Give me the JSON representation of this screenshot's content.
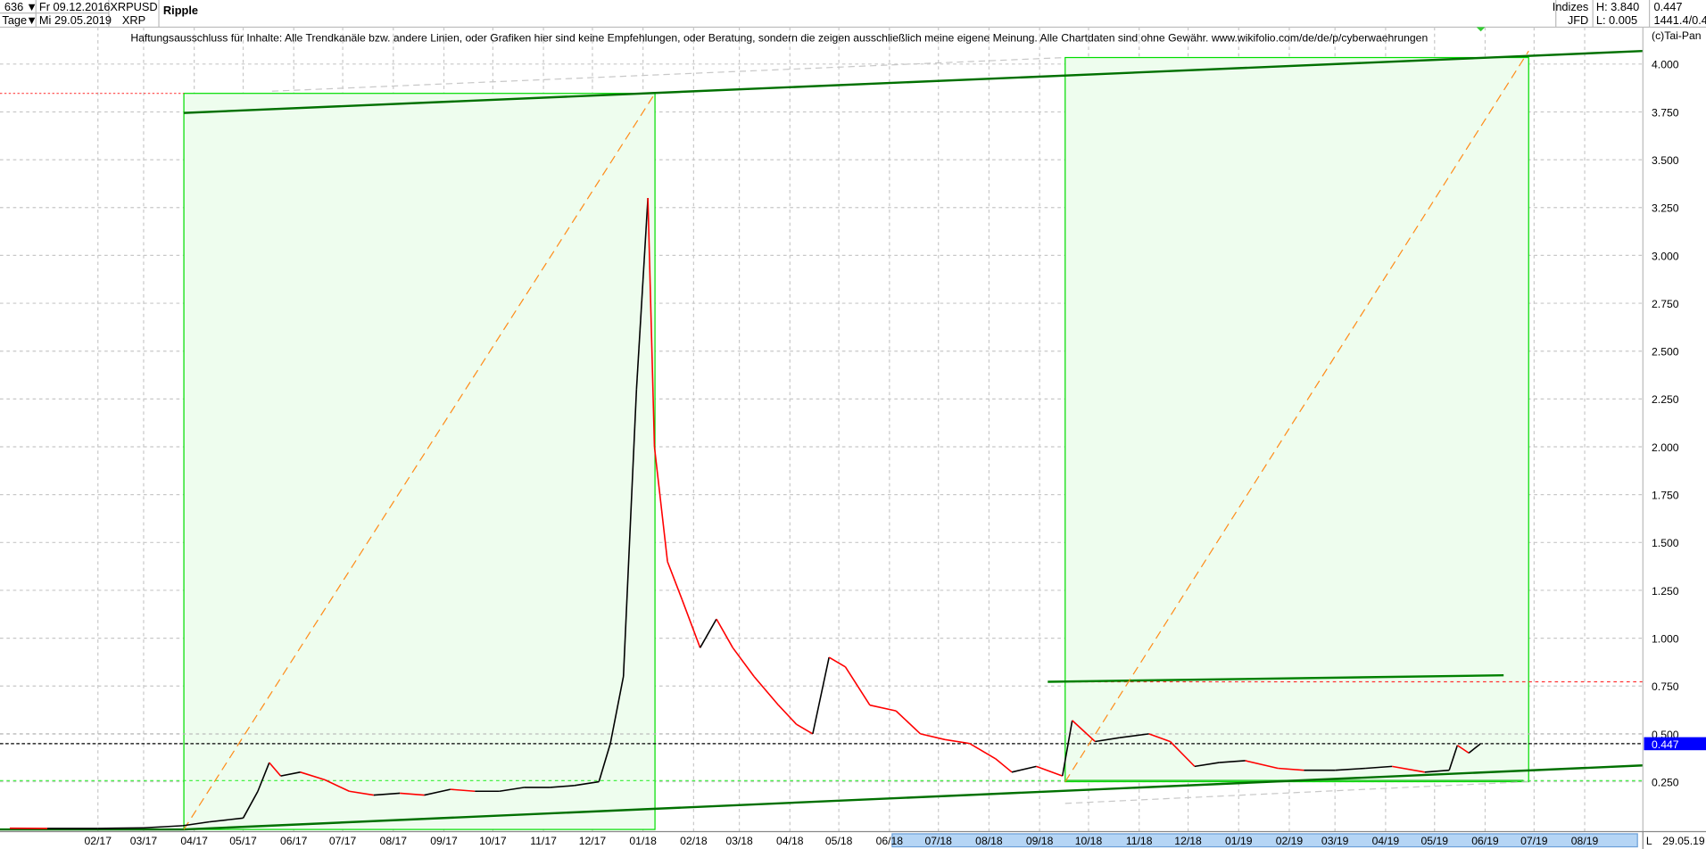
{
  "header": {
    "bars_count": "636",
    "period": "Tage",
    "date_from": "Fr 09.12.2016",
    "date_to": "Mi 29.05.2019",
    "symbol": "XRPUSD",
    "symbol_short": "XRP",
    "name": "Ripple",
    "exchange_group": "Indizes",
    "exchange": "JFD",
    "high": "H: 3.840",
    "low": "L: 0.005",
    "last": "0.447",
    "extra": "1441.4/0.4",
    "copyright": "(c)Tai-Pan"
  },
  "disclaimer": "Haftungsausschluss für Inhalte: Alle Trendkanäle bzw. andere Linien, oder Grafiken hier sind keine Empfehlungen, oder Beratung, sondern die zeigen ausschließlich meine eigene Meinung. Alle Chartdaten sind ohne Gewähr.  www.wikifolio.com/de/de/p/cyberwaehrungen",
  "footer": {
    "mode": "L",
    "last_date": "29.05.19"
  },
  "colors": {
    "up": "#000000",
    "down": "#ff0000",
    "box_fill": "#eefdee",
    "box_stroke": "#00dd00",
    "trend": "#008000",
    "diagonal": "#ff8c1a",
    "last_price_bg": "#0000ff"
  },
  "chart_data": {
    "type": "line",
    "title": "Ripple",
    "price_label": "0.447",
    "ylim": [
      0,
      4.1
    ],
    "y_ticks": [
      "0.250",
      "0.500",
      "0.750",
      "1.000",
      "1.250",
      "1.500",
      "1.750",
      "2.000",
      "2.250",
      "2.500",
      "2.750",
      "3.000",
      "3.250",
      "3.500",
      "3.750",
      "4.000"
    ],
    "x_ticks": [
      "02/17",
      "03/17",
      "04/17",
      "05/17",
      "06/17",
      "07/17",
      "08/17",
      "09/17",
      "10/17",
      "11/17",
      "12/17",
      "01/18",
      "02/18",
      "03/18",
      "04/18",
      "05/18",
      "06/18",
      "07/18",
      "08/18",
      "09/18",
      "10/18",
      "11/18",
      "12/18",
      "01/19",
      "02/19",
      "03/19",
      "04/19",
      "05/19",
      "06/19",
      "07/19",
      "08/19"
    ],
    "grid": true,
    "series": [
      {
        "x": [
          "2016-12-09",
          "2017-01-01",
          "2017-02-01",
          "2017-03-01",
          "2017-03-25",
          "2017-04-10",
          "2017-05-01",
          "2017-05-10",
          "2017-05-17",
          "2017-05-24",
          "2017-06-05",
          "2017-06-20",
          "2017-07-05",
          "2017-07-20",
          "2017-08-05",
          "2017-08-20",
          "2017-09-05",
          "2017-09-20",
          "2017-10-05",
          "2017-10-20",
          "2017-11-05",
          "2017-11-20",
          "2017-12-05",
          "2017-12-12",
          "2017-12-20",
          "2017-12-28",
          "2018-01-04",
          "2018-01-08",
          "2018-01-16",
          "2018-01-25",
          "2018-02-05",
          "2018-02-15",
          "2018-02-25",
          "2018-03-10",
          "2018-03-25",
          "2018-04-05",
          "2018-04-15",
          "2018-04-25",
          "2018-05-05",
          "2018-05-20",
          "2018-06-05",
          "2018-06-20",
          "2018-07-05",
          "2018-07-20",
          "2018-08-05",
          "2018-08-15",
          "2018-08-30",
          "2018-09-15",
          "2018-09-21",
          "2018-10-05",
          "2018-10-20",
          "2018-11-07",
          "2018-11-20",
          "2018-12-05",
          "2018-12-20",
          "2019-01-05",
          "2019-01-25",
          "2019-02-10",
          "2019-03-01",
          "2019-03-20",
          "2019-04-05",
          "2019-04-25",
          "2019-05-10",
          "2019-05-15",
          "2019-05-22",
          "2019-05-29"
        ],
        "y": [
          0.007,
          0.006,
          0.006,
          0.009,
          0.02,
          0.04,
          0.06,
          0.2,
          0.35,
          0.28,
          0.3,
          0.26,
          0.2,
          0.18,
          0.19,
          0.18,
          0.21,
          0.2,
          0.2,
          0.22,
          0.22,
          0.23,
          0.25,
          0.45,
          0.8,
          2.3,
          3.3,
          2.0,
          1.4,
          1.2,
          0.95,
          1.1,
          0.95,
          0.8,
          0.65,
          0.55,
          0.5,
          0.9,
          0.85,
          0.65,
          0.62,
          0.5,
          0.47,
          0.45,
          0.37,
          0.3,
          0.33,
          0.28,
          0.57,
          0.46,
          0.48,
          0.5,
          0.46,
          0.33,
          0.35,
          0.36,
          0.32,
          0.31,
          0.31,
          0.32,
          0.33,
          0.3,
          0.31,
          0.44,
          0.4,
          0.447
        ]
      }
    ],
    "levels": {
      "last": 0.447,
      "high_box": 3.84,
      "resistance": 0.777,
      "support": 0.25
    }
  }
}
